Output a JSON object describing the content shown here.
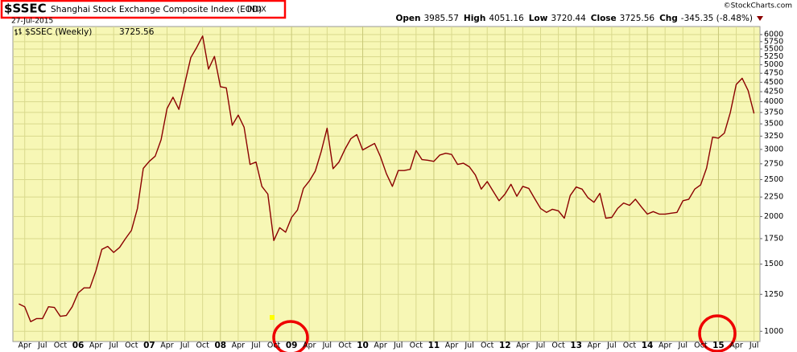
{
  "chart_data": {
    "type": "line",
    "symbol": "$SSEC",
    "title": "Shanghai Stock Exchange Composite Index (EOD)",
    "exchange": "INDX",
    "date": "27-Jul-2015",
    "source": "©StockCharts.com",
    "quote": [
      {
        "label": "Open",
        "value": 3985.57
      },
      {
        "label": "High",
        "value": 4051.16
      },
      {
        "label": "Low",
        "value": 3720.44
      },
      {
        "label": "Close",
        "value": 3725.56
      },
      {
        "label": "Chg",
        "value": "-345.35 (-8.48%)"
      }
    ],
    "log_scale": true,
    "grid": true,
    "background": "#f7f7b5",
    "xlim": [
      "2005-02",
      "2015-08"
    ],
    "ylim": [
      940,
      6300
    ],
    "yticks": [
      1000,
      1250,
      1500,
      1750,
      2000,
      2250,
      2500,
      2750,
      3000,
      3250,
      3500,
      3750,
      4000,
      4250,
      4500,
      4750,
      5000,
      5250,
      5500,
      5750,
      6000
    ],
    "xticks": [
      {
        "value": "2005-04",
        "label": "Apr"
      },
      {
        "value": "2005-07",
        "label": "Jul"
      },
      {
        "value": "2005-10",
        "label": "Oct"
      },
      {
        "value": "2006-01",
        "label": "06"
      },
      {
        "value": "2006-04",
        "label": "Apr"
      },
      {
        "value": "2006-07",
        "label": "Jul"
      },
      {
        "value": "2006-10",
        "label": "Oct"
      },
      {
        "value": "2007-01",
        "label": "07"
      },
      {
        "value": "2007-04",
        "label": "Apr"
      },
      {
        "value": "2007-07",
        "label": "Jul"
      },
      {
        "value": "2007-10",
        "label": "Oct"
      },
      {
        "value": "2008-01",
        "label": "08"
      },
      {
        "value": "2008-04",
        "label": "Apr"
      },
      {
        "value": "2008-07",
        "label": "Jul"
      },
      {
        "value": "2008-10",
        "label": "Oct"
      },
      {
        "value": "2009-01",
        "label": "09"
      },
      {
        "value": "2009-04",
        "label": "Apr"
      },
      {
        "value": "2009-07",
        "label": "Jul"
      },
      {
        "value": "2009-10",
        "label": "Oct"
      },
      {
        "value": "2010-01",
        "label": "10"
      },
      {
        "value": "2010-04",
        "label": "Apr"
      },
      {
        "value": "2010-07",
        "label": "Jul"
      },
      {
        "value": "2010-10",
        "label": "Oct"
      },
      {
        "value": "2011-01",
        "label": "11"
      },
      {
        "value": "2011-04",
        "label": "Apr"
      },
      {
        "value": "2011-07",
        "label": "Jul"
      },
      {
        "value": "2011-10",
        "label": "Oct"
      },
      {
        "value": "2012-01",
        "label": "12"
      },
      {
        "value": "2012-04",
        "label": "Apr"
      },
      {
        "value": "2012-07",
        "label": "Jul"
      },
      {
        "value": "2012-10",
        "label": "Oct"
      },
      {
        "value": "2013-01",
        "label": "13"
      },
      {
        "value": "2013-04",
        "label": "Apr"
      },
      {
        "value": "2013-07",
        "label": "Jul"
      },
      {
        "value": "2013-10",
        "label": "Oct"
      },
      {
        "value": "2014-01",
        "label": "14"
      },
      {
        "value": "2014-04",
        "label": "Apr"
      },
      {
        "value": "2014-07",
        "label": "Jul"
      },
      {
        "value": "2014-10",
        "label": "Oct"
      },
      {
        "value": "2015-01",
        "label": "15"
      },
      {
        "value": "2015-04",
        "label": "Apr"
      },
      {
        "value": "2015-07",
        "label": "Jul"
      }
    ],
    "x": [
      "2005-03",
      "2005-04",
      "2005-05",
      "2005-06",
      "2005-07",
      "2005-08",
      "2005-09",
      "2005-10",
      "2005-11",
      "2005-12",
      "2006-01",
      "2006-02",
      "2006-03",
      "2006-04",
      "2006-05",
      "2006-06",
      "2006-07",
      "2006-08",
      "2006-09",
      "2006-10",
      "2006-11",
      "2006-12",
      "2007-01",
      "2007-02",
      "2007-03",
      "2007-04",
      "2007-05",
      "2007-06",
      "2007-07",
      "2007-08",
      "2007-09",
      "2007-10",
      "2007-11",
      "2007-12",
      "2008-01",
      "2008-02",
      "2008-03",
      "2008-04",
      "2008-05",
      "2008-06",
      "2008-07",
      "2008-08",
      "2008-09",
      "2008-10",
      "2008-11",
      "2008-12",
      "2009-01",
      "2009-02",
      "2009-03",
      "2009-04",
      "2009-05",
      "2009-06",
      "2009-07",
      "2009-08",
      "2009-09",
      "2009-10",
      "2009-11",
      "2009-12",
      "2010-01",
      "2010-02",
      "2010-03",
      "2010-04",
      "2010-05",
      "2010-06",
      "2010-07",
      "2010-08",
      "2010-09",
      "2010-10",
      "2010-11",
      "2010-12",
      "2011-01",
      "2011-02",
      "2011-03",
      "2011-04",
      "2011-05",
      "2011-06",
      "2011-07",
      "2011-08",
      "2011-09",
      "2011-10",
      "2011-11",
      "2011-12",
      "2012-01",
      "2012-02",
      "2012-03",
      "2012-04",
      "2012-05",
      "2012-06",
      "2012-07",
      "2012-08",
      "2012-09",
      "2012-10",
      "2012-11",
      "2012-12",
      "2013-01",
      "2013-02",
      "2013-03",
      "2013-04",
      "2013-05",
      "2013-06",
      "2013-07",
      "2013-08",
      "2013-09",
      "2013-10",
      "2013-11",
      "2013-12",
      "2014-01",
      "2014-02",
      "2014-03",
      "2014-04",
      "2014-05",
      "2014-06",
      "2014-07",
      "2014-08",
      "2014-09",
      "2014-10",
      "2014-11",
      "2014-12",
      "2015-01",
      "2015-02",
      "2015-03",
      "2015-04",
      "2015-05",
      "2015-06",
      "2015-07"
    ],
    "series": [
      {
        "name": "$SSEC (Weekly)",
        "last_value": 3725.56,
        "color": "#8b0000",
        "values": [
          1180,
          1160,
          1060,
          1080,
          1080,
          1160,
          1155,
          1095,
          1100,
          1160,
          1260,
          1300,
          1300,
          1440,
          1640,
          1670,
          1610,
          1660,
          1750,
          1840,
          2100,
          2675,
          2790,
          2880,
          3180,
          3840,
          4110,
          3820,
          4470,
          5220,
          5550,
          5950,
          4870,
          5260,
          4380,
          4350,
          3470,
          3690,
          3430,
          2740,
          2780,
          2400,
          2290,
          1730,
          1870,
          1820,
          1990,
          2080,
          2370,
          2480,
          2630,
          2960,
          3410,
          2670,
          2780,
          3000,
          3200,
          3280,
          2990,
          3050,
          3110,
          2870,
          2590,
          2400,
          2640,
          2640,
          2660,
          2980,
          2820,
          2810,
          2790,
          2900,
          2930,
          2910,
          2740,
          2760,
          2700,
          2570,
          2360,
          2470,
          2330,
          2200,
          2290,
          2430,
          2260,
          2400,
          2370,
          2230,
          2100,
          2050,
          2090,
          2070,
          1980,
          2270,
          2390,
          2360,
          2240,
          2180,
          2300,
          1980,
          1990,
          2100,
          2170,
          2140,
          2220,
          2120,
          2030,
          2060,
          2030,
          2030,
          2040,
          2050,
          2200,
          2220,
          2360,
          2420,
          2680,
          3230,
          3210,
          3310,
          3750,
          4440,
          4610,
          4280,
          3725.56
        ]
      }
    ]
  }
}
